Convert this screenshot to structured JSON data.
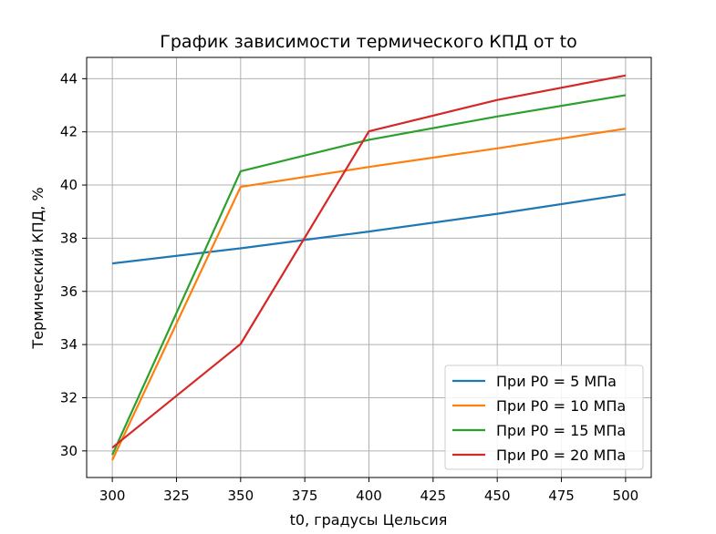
{
  "chart_data": {
    "type": "line",
    "title": "График зависимости термического КПД от to",
    "xlabel": "t0, градусы Цельсия",
    "ylabel": "Термический КПД, %",
    "x": [
      300,
      350,
      400,
      450,
      500
    ],
    "xlim": [
      290,
      510
    ],
    "ylim": [
      29.0,
      44.8
    ],
    "xticks": [
      300,
      325,
      350,
      375,
      400,
      425,
      450,
      475,
      500
    ],
    "yticks": [
      30,
      32,
      34,
      36,
      38,
      40,
      42,
      44
    ],
    "grid": true,
    "legend_position": "lower-right",
    "series": [
      {
        "name": "При P0 = 5 МПа",
        "color": "#1f77b4",
        "values": [
          37.05,
          37.62,
          38.25,
          38.92,
          39.65
        ]
      },
      {
        "name": "При P0 = 10 МПа",
        "color": "#ff7f0e",
        "values": [
          29.65,
          39.93,
          40.68,
          41.38,
          42.12
        ]
      },
      {
        "name": "При P0 = 15 МПа",
        "color": "#2ca02c",
        "values": [
          29.85,
          40.52,
          41.7,
          42.58,
          43.38
        ]
      },
      {
        "name": "При P0 = 20 МПа",
        "color": "#d62728",
        "values": [
          30.12,
          34.02,
          42.02,
          43.2,
          44.12
        ]
      }
    ]
  }
}
